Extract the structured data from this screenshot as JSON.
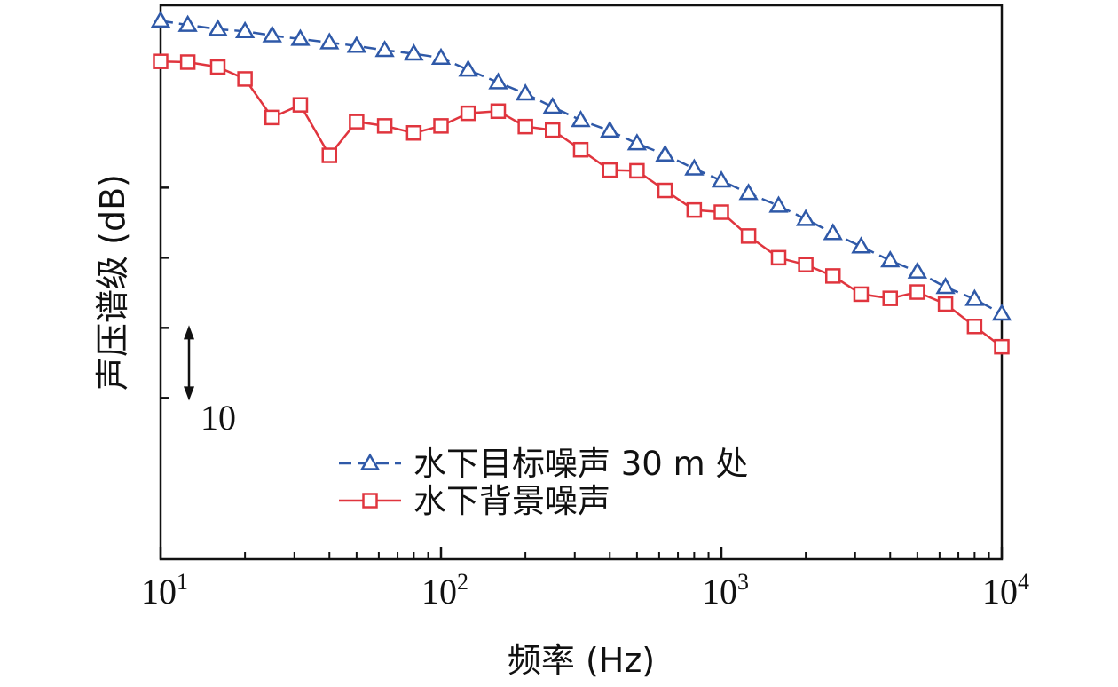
{
  "chart_data": {
    "type": "line",
    "title": "",
    "xlabel": "频率 (Hz)",
    "ylabel": "声压谱级 (dB)",
    "x_scale": "log",
    "xlim": [
      10,
      10000
    ],
    "x_ticks": [
      {
        "base": "10",
        "exp": "1",
        "value": 10
      },
      {
        "base": "10",
        "exp": "2",
        "value": 100
      },
      {
        "base": "10",
        "exp": "3",
        "value": 1000
      },
      {
        "base": "10",
        "exp": "4",
        "value": 10000
      }
    ],
    "ylim": [
      -13,
      66
    ],
    "y_ticks": [
      10,
      20,
      30,
      40
    ],
    "y_tick_labels_shown": false,
    "scale_bar": {
      "label": "10",
      "from": 10,
      "to": 20
    },
    "legend_position": "lower-center",
    "grid": false,
    "x": [
      10,
      12.5,
      16,
      20,
      25,
      31.5,
      40,
      50,
      63,
      80,
      100,
      125,
      160,
      200,
      250,
      315,
      400,
      500,
      630,
      800,
      1000,
      1250,
      1600,
      2000,
      2500,
      3150,
      4000,
      5000,
      6300,
      8000,
      10000
    ],
    "series": [
      {
        "name": "水下目标噪声 30 m 处",
        "color": "#2f59a8",
        "marker": "triangle",
        "dash": "dashed",
        "values": [
          63.8,
          63.2,
          62.6,
          62.3,
          61.7,
          61.2,
          60.7,
          60.2,
          59.6,
          59.1,
          58.5,
          56.8,
          55.0,
          53.4,
          51.5,
          49.6,
          48.1,
          46.3,
          44.7,
          42.7,
          41.0,
          39.2,
          37.4,
          35.5,
          33.5,
          31.6,
          29.6,
          28.0,
          25.8,
          24.1,
          22.0
        ]
      },
      {
        "name": "水下背景噪声",
        "color": "#e0353e",
        "marker": "square",
        "dash": "solid",
        "values": [
          58.0,
          57.9,
          57.2,
          55.5,
          50.0,
          51.8,
          44.6,
          49.4,
          48.8,
          47.8,
          48.8,
          50.6,
          50.9,
          48.7,
          48.2,
          45.4,
          42.5,
          42.4,
          39.6,
          36.8,
          36.5,
          33.1,
          30.0,
          29.0,
          27.4,
          24.8,
          24.2,
          25.1,
          23.4,
          20.2,
          17.3
        ]
      }
    ]
  }
}
